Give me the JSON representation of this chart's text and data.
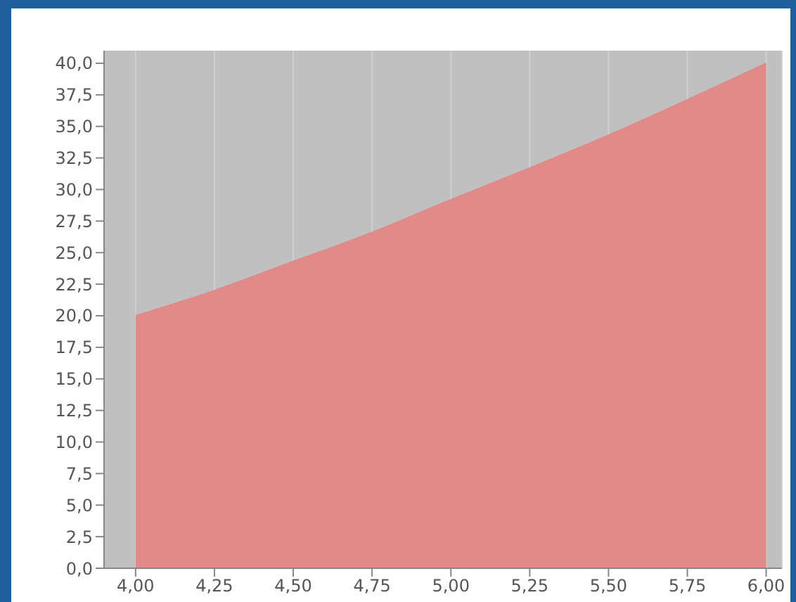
{
  "chart_data": {
    "type": "area",
    "x": [
      4.0,
      4.25,
      4.5,
      4.75,
      5.0,
      5.25,
      5.5,
      5.75,
      6.0
    ],
    "series": [
      {
        "color": "#e08a8a",
        "values": [
          20,
          22,
          24.3,
          26.6,
          29.2,
          31.7,
          34.3,
          37.1,
          40
        ]
      }
    ],
    "xlim": [
      3.9,
      6.05
    ],
    "ylim": [
      0,
      41
    ],
    "xticks": [
      {
        "value": 4,
        "label": "4,00"
      },
      {
        "value": 4.25,
        "label": "4,25"
      },
      {
        "value": 4.5,
        "label": "4,50"
      },
      {
        "value": 4.75,
        "label": "4,75"
      },
      {
        "value": 5,
        "label": "5,00"
      },
      {
        "value": 5.25,
        "label": "5,25"
      },
      {
        "value": 5.5,
        "label": "5,50"
      },
      {
        "value": 5.75,
        "label": "5,75"
      },
      {
        "value": 6,
        "label": "6,00"
      }
    ],
    "yticks": [
      {
        "value": 0,
        "label": "0,0"
      },
      {
        "value": 2.5,
        "label": "2,5"
      },
      {
        "value": 5,
        "label": "5,0"
      },
      {
        "value": 7.5,
        "label": "7,5"
      },
      {
        "value": 10,
        "label": "10,0"
      },
      {
        "value": 12.5,
        "label": "12,5"
      },
      {
        "value": 15,
        "label": "15,0"
      },
      {
        "value": 17.5,
        "label": "17,5"
      },
      {
        "value": 20,
        "label": "20,0"
      },
      {
        "value": 22.5,
        "label": "22,5"
      },
      {
        "value": 25,
        "label": "25,0"
      },
      {
        "value": 27.5,
        "label": "27,5"
      },
      {
        "value": 30,
        "label": "30,0"
      },
      {
        "value": 32.5,
        "label": "32,5"
      },
      {
        "value": 35,
        "label": "35,0"
      },
      {
        "value": 37.5,
        "label": "37,5"
      },
      {
        "value": 40,
        "label": "40,0"
      }
    ],
    "grid": "x"
  }
}
